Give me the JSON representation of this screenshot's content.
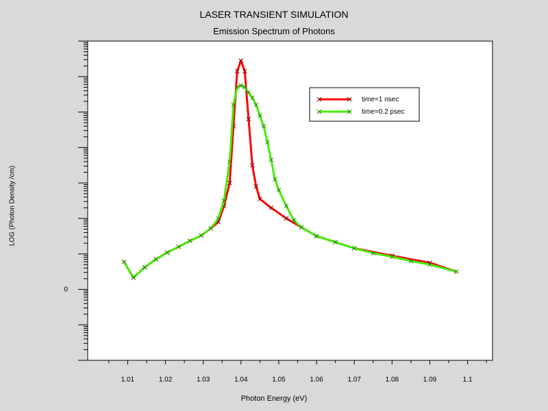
{
  "chart_data": {
    "type": "line",
    "title": "LASER TRANSIENT SIMULATION",
    "subtitle": "Emission Spectrum of Photons",
    "xlabel": "Photon Energy (eV)",
    "ylabel": "LOG (Photon Density /cm)",
    "xlim": [
      0.9994,
      1.1066
    ],
    "ylim": [
      -2,
      7
    ],
    "x_ticks": [
      "1.01",
      "1.02",
      "1.03",
      "1.04",
      "1.05",
      "1.06",
      "1.07",
      "1.08",
      "1.09",
      "1.1"
    ],
    "y_tick_labels": [
      {
        "value": 0,
        "label": "0"
      }
    ],
    "grid": false,
    "legend": "top-right",
    "series": [
      {
        "name": "time=1 nsec",
        "color": "#ff0000",
        "marker_color": "#8a0000",
        "x": [
          1.009,
          1.0115,
          1.0145,
          1.0175,
          1.0205,
          1.0235,
          1.0265,
          1.0295,
          1.032,
          1.034,
          1.0355,
          1.037,
          1.038,
          1.039,
          1.04,
          1.041,
          1.042,
          1.043,
          1.044,
          1.045,
          1.048,
          1.052,
          1.056,
          1.06,
          1.065,
          1.07,
          1.08,
          1.09,
          1.097
        ],
        "y": [
          0.78,
          0.33,
          0.62,
          0.85,
          1.04,
          1.2,
          1.37,
          1.52,
          1.72,
          1.9,
          2.35,
          3.0,
          4.6,
          6.15,
          6.45,
          6.15,
          4.8,
          3.5,
          2.9,
          2.55,
          2.3,
          2.0,
          1.75,
          1.5,
          1.33,
          1.16,
          0.95,
          0.75,
          0.5
        ]
      },
      {
        "name": "time=0.2 psec",
        "color": "#44ee00",
        "marker_color": "#228800",
        "x": [
          1.009,
          1.0115,
          1.0145,
          1.0175,
          1.0205,
          1.0235,
          1.0265,
          1.0295,
          1.032,
          1.034,
          1.0355,
          1.037,
          1.038,
          1.039,
          1.04,
          1.041,
          1.042,
          1.043,
          1.044,
          1.045,
          1.046,
          1.047,
          1.048,
          1.049,
          1.05,
          1.052,
          1.054,
          1.056,
          1.06,
          1.065,
          1.07,
          1.075,
          1.08,
          1.085,
          1.09,
          1.097
        ],
        "y": [
          0.78,
          0.33,
          0.62,
          0.85,
          1.04,
          1.2,
          1.37,
          1.52,
          1.72,
          2.0,
          2.5,
          3.6,
          5.2,
          5.7,
          5.75,
          5.7,
          5.55,
          5.4,
          5.2,
          4.9,
          4.6,
          4.15,
          3.65,
          3.1,
          2.8,
          2.35,
          1.95,
          1.75,
          1.5,
          1.33,
          1.16,
          1.02,
          0.92,
          0.8,
          0.7,
          0.5
        ]
      }
    ]
  }
}
